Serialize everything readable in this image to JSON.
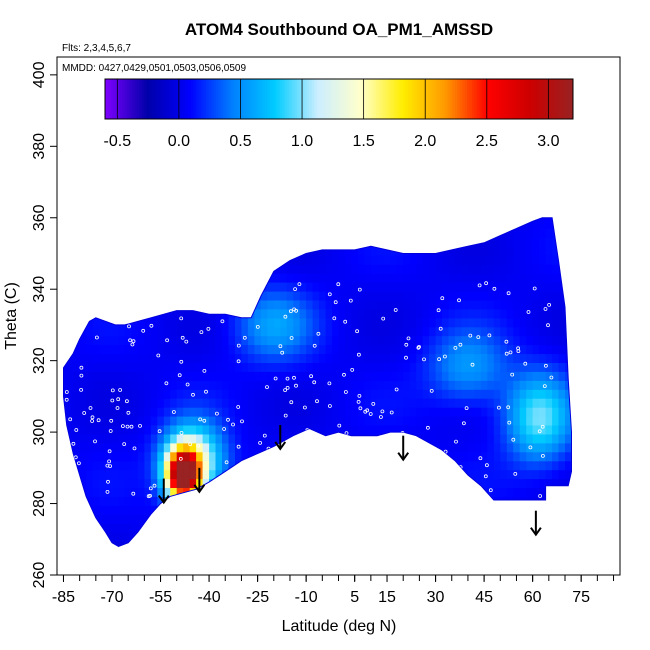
{
  "chart_data": {
    "type": "heatmap",
    "title": "ATOM4 Southbound OA_PM1_AMSSD",
    "flights_note": "Flts: 2,3,4,5,6,7",
    "dates_note": "MMDD: 0427,0429,0501,0503,0506,0509",
    "xlabel": "Latitude (deg N)",
    "ylabel": "Theta (C)",
    "xlim": [
      -87,
      87
    ],
    "ylim": [
      260,
      405
    ],
    "x_ticks": [
      -85,
      -70,
      -55,
      -40,
      -25,
      -10,
      5,
      15,
      30,
      45,
      60,
      75
    ],
    "x_tick_labels": [
      "-85",
      "-70",
      "-55",
      "-40",
      "-25",
      "-10",
      "5",
      "15",
      "30",
      "45",
      "60",
      "75"
    ],
    "y_ticks": [
      260,
      280,
      300,
      320,
      340,
      360,
      380,
      400
    ],
    "y_tick_labels": [
      "260",
      "280",
      "300",
      "320",
      "340",
      "360",
      "380",
      "400"
    ],
    "colorbar": {
      "range": [
        -0.6,
        3.2
      ],
      "ticks": [
        -0.5,
        0.0,
        0.5,
        1.0,
        1.5,
        2.0,
        2.5,
        3.0
      ],
      "tick_labels": [
        "-0.5",
        "0.0",
        "0.5",
        "1.0",
        "1.5",
        "2.0",
        "2.5",
        "3.0"
      ],
      "colors": [
        "#7f00ff",
        "#0000aa",
        "#0000ff",
        "#0080ff",
        "#00ccff",
        "#cceeff",
        "#ffffcc",
        "#ffee00",
        "#ff9900",
        "#ff0000",
        "#cc0000",
        "#992222"
      ]
    },
    "boundary": [
      [
        -85,
        318
      ],
      [
        -82,
        322
      ],
      [
        -80,
        326
      ],
      [
        -77,
        331
      ],
      [
        -75,
        332
      ],
      [
        -72,
        331
      ],
      [
        -69,
        330
      ],
      [
        -66,
        330
      ],
      [
        -62,
        331
      ],
      [
        -58,
        332
      ],
      [
        -54,
        333
      ],
      [
        -50,
        334
      ],
      [
        -45,
        334
      ],
      [
        -40,
        333
      ],
      [
        -35,
        333
      ],
      [
        -30,
        332
      ],
      [
        -27,
        332
      ],
      [
        -24,
        338
      ],
      [
        -20,
        345
      ],
      [
        -15,
        348
      ],
      [
        -10,
        350
      ],
      [
        -5,
        351
      ],
      [
        0,
        351
      ],
      [
        5,
        351
      ],
      [
        10,
        352
      ],
      [
        15,
        351
      ],
      [
        20,
        350
      ],
      [
        25,
        350
      ],
      [
        30,
        350
      ],
      [
        35,
        351
      ],
      [
        40,
        352
      ],
      [
        45,
        353
      ],
      [
        50,
        355
      ],
      [
        55,
        357
      ],
      [
        60,
        359
      ],
      [
        63,
        360
      ],
      [
        66,
        360
      ],
      [
        68,
        348
      ],
      [
        70,
        335
      ],
      [
        71,
        315
      ],
      [
        72,
        300
      ],
      [
        72,
        289
      ],
      [
        71,
        285
      ],
      [
        64,
        285
      ],
      [
        64,
        281
      ],
      [
        52,
        281
      ],
      [
        48,
        281
      ],
      [
        44,
        285
      ],
      [
        40,
        288
      ],
      [
        36,
        292
      ],
      [
        32,
        295
      ],
      [
        28,
        297
      ],
      [
        24,
        299
      ],
      [
        20,
        300
      ],
      [
        16,
        300
      ],
      [
        12,
        299
      ],
      [
        8,
        299
      ],
      [
        4,
        299
      ],
      [
        0,
        300
      ],
      [
        -4,
        299
      ],
      [
        -9,
        301
      ],
      [
        -14,
        299
      ],
      [
        -20,
        296
      ],
      [
        -25,
        294
      ],
      [
        -30,
        292
      ],
      [
        -35,
        289
      ],
      [
        -40,
        286
      ],
      [
        -44,
        284
      ],
      [
        -48,
        283
      ],
      [
        -52,
        282
      ],
      [
        -55,
        280
      ],
      [
        -58,
        277
      ],
      [
        -62,
        272
      ],
      [
        -65,
        269
      ],
      [
        -68,
        268
      ],
      [
        -70,
        269
      ],
      [
        -72,
        272
      ],
      [
        -75,
        276
      ],
      [
        -78,
        282
      ],
      [
        -80,
        288
      ],
      [
        -82,
        294
      ],
      [
        -84,
        302
      ],
      [
        -85,
        310
      ]
    ],
    "hotspots": [
      {
        "lat": -48,
        "theta": 288,
        "value": 3.0,
        "radius_lat": 5,
        "radius_theta": 7
      },
      {
        "lat": -45,
        "theta": 292,
        "value": 1.4,
        "radius_lat": 9,
        "radius_theta": 10
      },
      {
        "lat": 62,
        "theta": 304,
        "value": 0.9,
        "radius_lat": 10,
        "radius_theta": 12
      },
      {
        "lat": 40,
        "theta": 318,
        "value": 0.5,
        "radius_lat": 12,
        "radius_theta": 10
      },
      {
        "lat": -20,
        "theta": 330,
        "value": 0.5,
        "radius_lat": 12,
        "radius_theta": 10
      }
    ],
    "arrows": [
      {
        "lat": -54,
        "theta": 287
      },
      {
        "lat": -43,
        "theta": 290
      },
      {
        "lat": -18,
        "theta": 302
      },
      {
        "lat": 20,
        "theta": 299
      },
      {
        "lat": 61,
        "theta": 278
      }
    ]
  }
}
